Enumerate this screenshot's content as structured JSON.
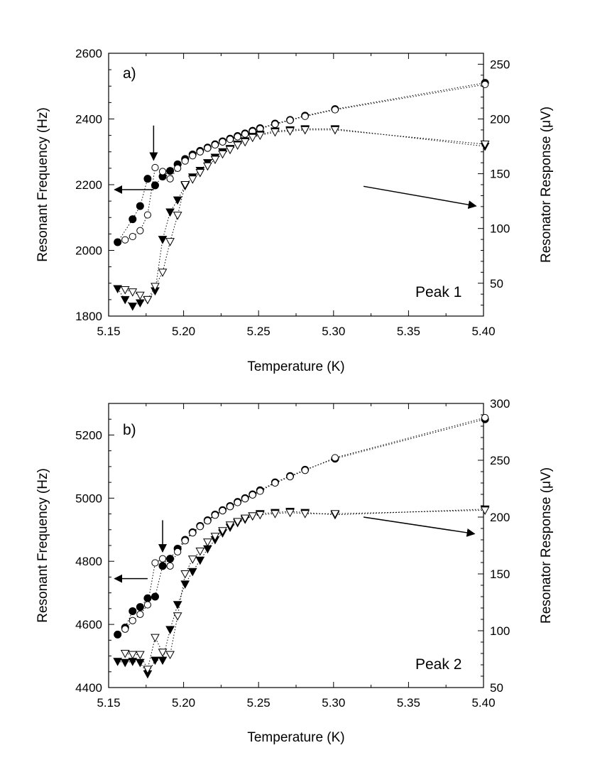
{
  "chart_data": [
    {
      "type": "scatter",
      "panel_label": "a)",
      "peak_label": "Peak 1",
      "xlabel": "Temperature (K)",
      "ylabel": "Resonant Frequency (Hz)",
      "y2label_prefix": "Resonator Response (",
      "y2label_unit": "μV",
      "y2label_suffix": ")",
      "xlim": [
        5.15,
        5.4
      ],
      "ylim": [
        1800,
        2600
      ],
      "y2lim": [
        20,
        260
      ],
      "xticks": [
        5.15,
        5.2,
        5.25,
        5.3,
        5.35,
        5.4
      ],
      "xtick_labels": [
        "5.15",
        "5.20",
        "5.25",
        "5.30",
        "5.35",
        "5.40"
      ],
      "yticks": [
        1800,
        2000,
        2200,
        2400,
        2600
      ],
      "ytick_labels": [
        "1800",
        "2000",
        "2200",
        "2400",
        "2600"
      ],
      "y2ticks": [
        50,
        100,
        150,
        200,
        250
      ],
      "y2tick_labels": [
        "50",
        "100",
        "150",
        "200",
        "250"
      ],
      "series": [
        {
          "name": "Frequency (filled)",
          "axis": "left",
          "marker": "circle-filled",
          "x": [
            5.156,
            5.166,
            5.171,
            5.176,
            5.181,
            5.186,
            5.191,
            5.196,
            5.201,
            5.206,
            5.211,
            5.216,
            5.221,
            5.226,
            5.231,
            5.236,
            5.241,
            5.246,
            5.251,
            5.261,
            5.271,
            5.281,
            5.301,
            5.401
          ],
          "y": [
            2025,
            2095,
            2135,
            2218,
            2198,
            2225,
            2242,
            2262,
            2278,
            2292,
            2303,
            2313,
            2323,
            2332,
            2340,
            2348,
            2356,
            2364,
            2372,
            2386,
            2397,
            2410,
            2430,
            2510
          ]
        },
        {
          "name": "Frequency (open)",
          "axis": "left",
          "marker": "circle-open",
          "x": [
            5.161,
            5.166,
            5.171,
            5.176,
            5.181,
            5.186,
            5.191,
            5.196,
            5.201,
            5.206,
            5.211,
            5.216,
            5.221,
            5.226,
            5.231,
            5.236,
            5.241,
            5.246,
            5.251,
            5.261,
            5.271,
            5.281,
            5.301,
            5.401
          ],
          "y": [
            2032,
            2042,
            2060,
            2108,
            2252,
            2240,
            2218,
            2250,
            2272,
            2288,
            2300,
            2311,
            2321,
            2330,
            2338,
            2346,
            2354,
            2362,
            2370,
            2384,
            2396,
            2408,
            2428,
            2505
          ]
        },
        {
          "name": "Response (filled)",
          "axis": "right",
          "marker": "triangle-filled",
          "x": [
            5.156,
            5.161,
            5.166,
            5.171,
            5.176,
            5.181,
            5.186,
            5.191,
            5.196,
            5.201,
            5.206,
            5.211,
            5.216,
            5.221,
            5.226,
            5.231,
            5.236,
            5.241,
            5.246,
            5.251,
            5.261,
            5.271,
            5.281,
            5.301,
            5.401
          ],
          "y": [
            45,
            35,
            29,
            32,
            35,
            43,
            90,
            115,
            126,
            139,
            147,
            153,
            160,
            165,
            170,
            173,
            177,
            180,
            184,
            186,
            189,
            190,
            191,
            191,
            175
          ]
        },
        {
          "name": "Response (open)",
          "axis": "right",
          "marker": "triangle-open",
          "x": [
            5.161,
            5.166,
            5.171,
            5.176,
            5.181,
            5.186,
            5.191,
            5.196,
            5.201,
            5.206,
            5.211,
            5.216,
            5.221,
            5.226,
            5.231,
            5.236,
            5.241,
            5.246,
            5.251,
            5.261,
            5.271,
            5.281,
            5.301,
            5.401
          ],
          "y": [
            44,
            42,
            39,
            35,
            47,
            60,
            88,
            112,
            140,
            145,
            151,
            157,
            163,
            168,
            172,
            176,
            179,
            183,
            185,
            188,
            189,
            190,
            190,
            177
          ]
        }
      ],
      "annotations": [
        {
          "type": "arrow",
          "description": "down arrow marking transition",
          "from": [
            5.18,
            2380
          ],
          "to": [
            5.18,
            2275
          ]
        },
        {
          "type": "arrow",
          "description": "left arrow to frequency axis",
          "from": [
            5.18,
            2185
          ],
          "to": [
            5.154,
            2185
          ]
        },
        {
          "type": "arrow",
          "description": "right arrow to response axis",
          "from": [
            5.32,
            2195
          ],
          "to": [
            5.395,
            2135
          ]
        }
      ]
    },
    {
      "type": "scatter",
      "panel_label": "b)",
      "peak_label": "Peak 2",
      "xlabel": "Temperature (K)",
      "ylabel": "Resonant Frequency (Hz)",
      "y2label_prefix": "Resonator Response (",
      "y2label_unit": "μV",
      "y2label_suffix": ")",
      "xlim": [
        5.15,
        5.4
      ],
      "ylim": [
        4400,
        5300
      ],
      "y2lim": [
        50,
        300
      ],
      "xticks": [
        5.15,
        5.2,
        5.25,
        5.3,
        5.35,
        5.4
      ],
      "xtick_labels": [
        "5.15",
        "5.20",
        "5.25",
        "5.30",
        "5.35",
        "5.40"
      ],
      "yticks": [
        4400,
        4600,
        4800,
        5000,
        5200
      ],
      "ytick_labels": [
        "4400",
        "4600",
        "4800",
        "5000",
        "5200"
      ],
      "y2ticks": [
        50,
        100,
        150,
        200,
        250,
        300
      ],
      "y2tick_labels": [
        "50",
        "100",
        "150",
        "200",
        "250",
        "300"
      ],
      "series": [
        {
          "name": "Frequency (filled)",
          "axis": "left",
          "marker": "circle-filled",
          "x": [
            5.156,
            5.161,
            5.166,
            5.171,
            5.176,
            5.181,
            5.186,
            5.191,
            5.196,
            5.201,
            5.206,
            5.211,
            5.216,
            5.221,
            5.226,
            5.231,
            5.236,
            5.241,
            5.246,
            5.251,
            5.261,
            5.271,
            5.281,
            5.301,
            5.401
          ],
          "y": [
            4568,
            4590,
            4642,
            4655,
            4683,
            4688,
            4785,
            4808,
            4840,
            4868,
            4892,
            4912,
            4930,
            4948,
            4962,
            4975,
            4988,
            5000,
            5012,
            5025,
            5050,
            5070,
            5090,
            5125,
            5250
          ]
        },
        {
          "name": "Frequency (open)",
          "axis": "left",
          "marker": "circle-open",
          "x": [
            5.161,
            5.166,
            5.171,
            5.176,
            5.181,
            5.186,
            5.191,
            5.196,
            5.201,
            5.206,
            5.211,
            5.216,
            5.221,
            5.226,
            5.231,
            5.236,
            5.241,
            5.246,
            5.251,
            5.261,
            5.271,
            5.281,
            5.301,
            5.401
          ],
          "y": [
            4585,
            4612,
            4632,
            4662,
            4795,
            4808,
            4785,
            4830,
            4865,
            4890,
            4910,
            4928,
            4946,
            4960,
            4973,
            4986,
            4998,
            5010,
            5022,
            5048,
            5068,
            5088,
            5128,
            5255
          ]
        },
        {
          "name": "Response (filled)",
          "axis": "right",
          "marker": "triangle-filled",
          "x": [
            5.156,
            5.161,
            5.166,
            5.171,
            5.176,
            5.181,
            5.186,
            5.191,
            5.196,
            5.201,
            5.206,
            5.211,
            5.216,
            5.221,
            5.226,
            5.231,
            5.236,
            5.241,
            5.246,
            5.251,
            5.261,
            5.271,
            5.281,
            5.301,
            5.401
          ],
          "y": [
            73,
            72,
            73,
            72,
            62,
            74,
            74,
            101,
            123,
            141,
            152,
            162,
            172,
            180,
            186,
            191,
            195,
            198,
            201,
            203,
            204,
            205,
            204,
            202,
            207
          ]
        },
        {
          "name": "Response (open)",
          "axis": "right",
          "marker": "triangle-open",
          "x": [
            5.161,
            5.166,
            5.171,
            5.176,
            5.181,
            5.186,
            5.191,
            5.196,
            5.201,
            5.206,
            5.211,
            5.216,
            5.221,
            5.226,
            5.231,
            5.236,
            5.241,
            5.246,
            5.251,
            5.261,
            5.271,
            5.281,
            5.301,
            5.401
          ],
          "y": [
            80,
            79,
            79,
            66,
            94,
            81,
            79,
            113,
            150,
            163,
            170,
            178,
            183,
            188,
            193,
            196,
            199,
            201,
            202,
            203,
            204,
            203,
            203,
            206
          ]
        }
      ],
      "annotations": [
        {
          "type": "arrow",
          "description": "down arrow marking transition",
          "from": [
            5.186,
            4930
          ],
          "to": [
            5.186,
            4830
          ]
        },
        {
          "type": "arrow",
          "description": "left arrow to frequency axis",
          "from": [
            5.176,
            4745
          ],
          "to": [
            5.154,
            4745
          ]
        },
        {
          "type": "arrow",
          "description": "right arrow to response axis",
          "from": [
            5.32,
            4940
          ],
          "to": [
            5.394,
            4887
          ]
        }
      ]
    }
  ]
}
